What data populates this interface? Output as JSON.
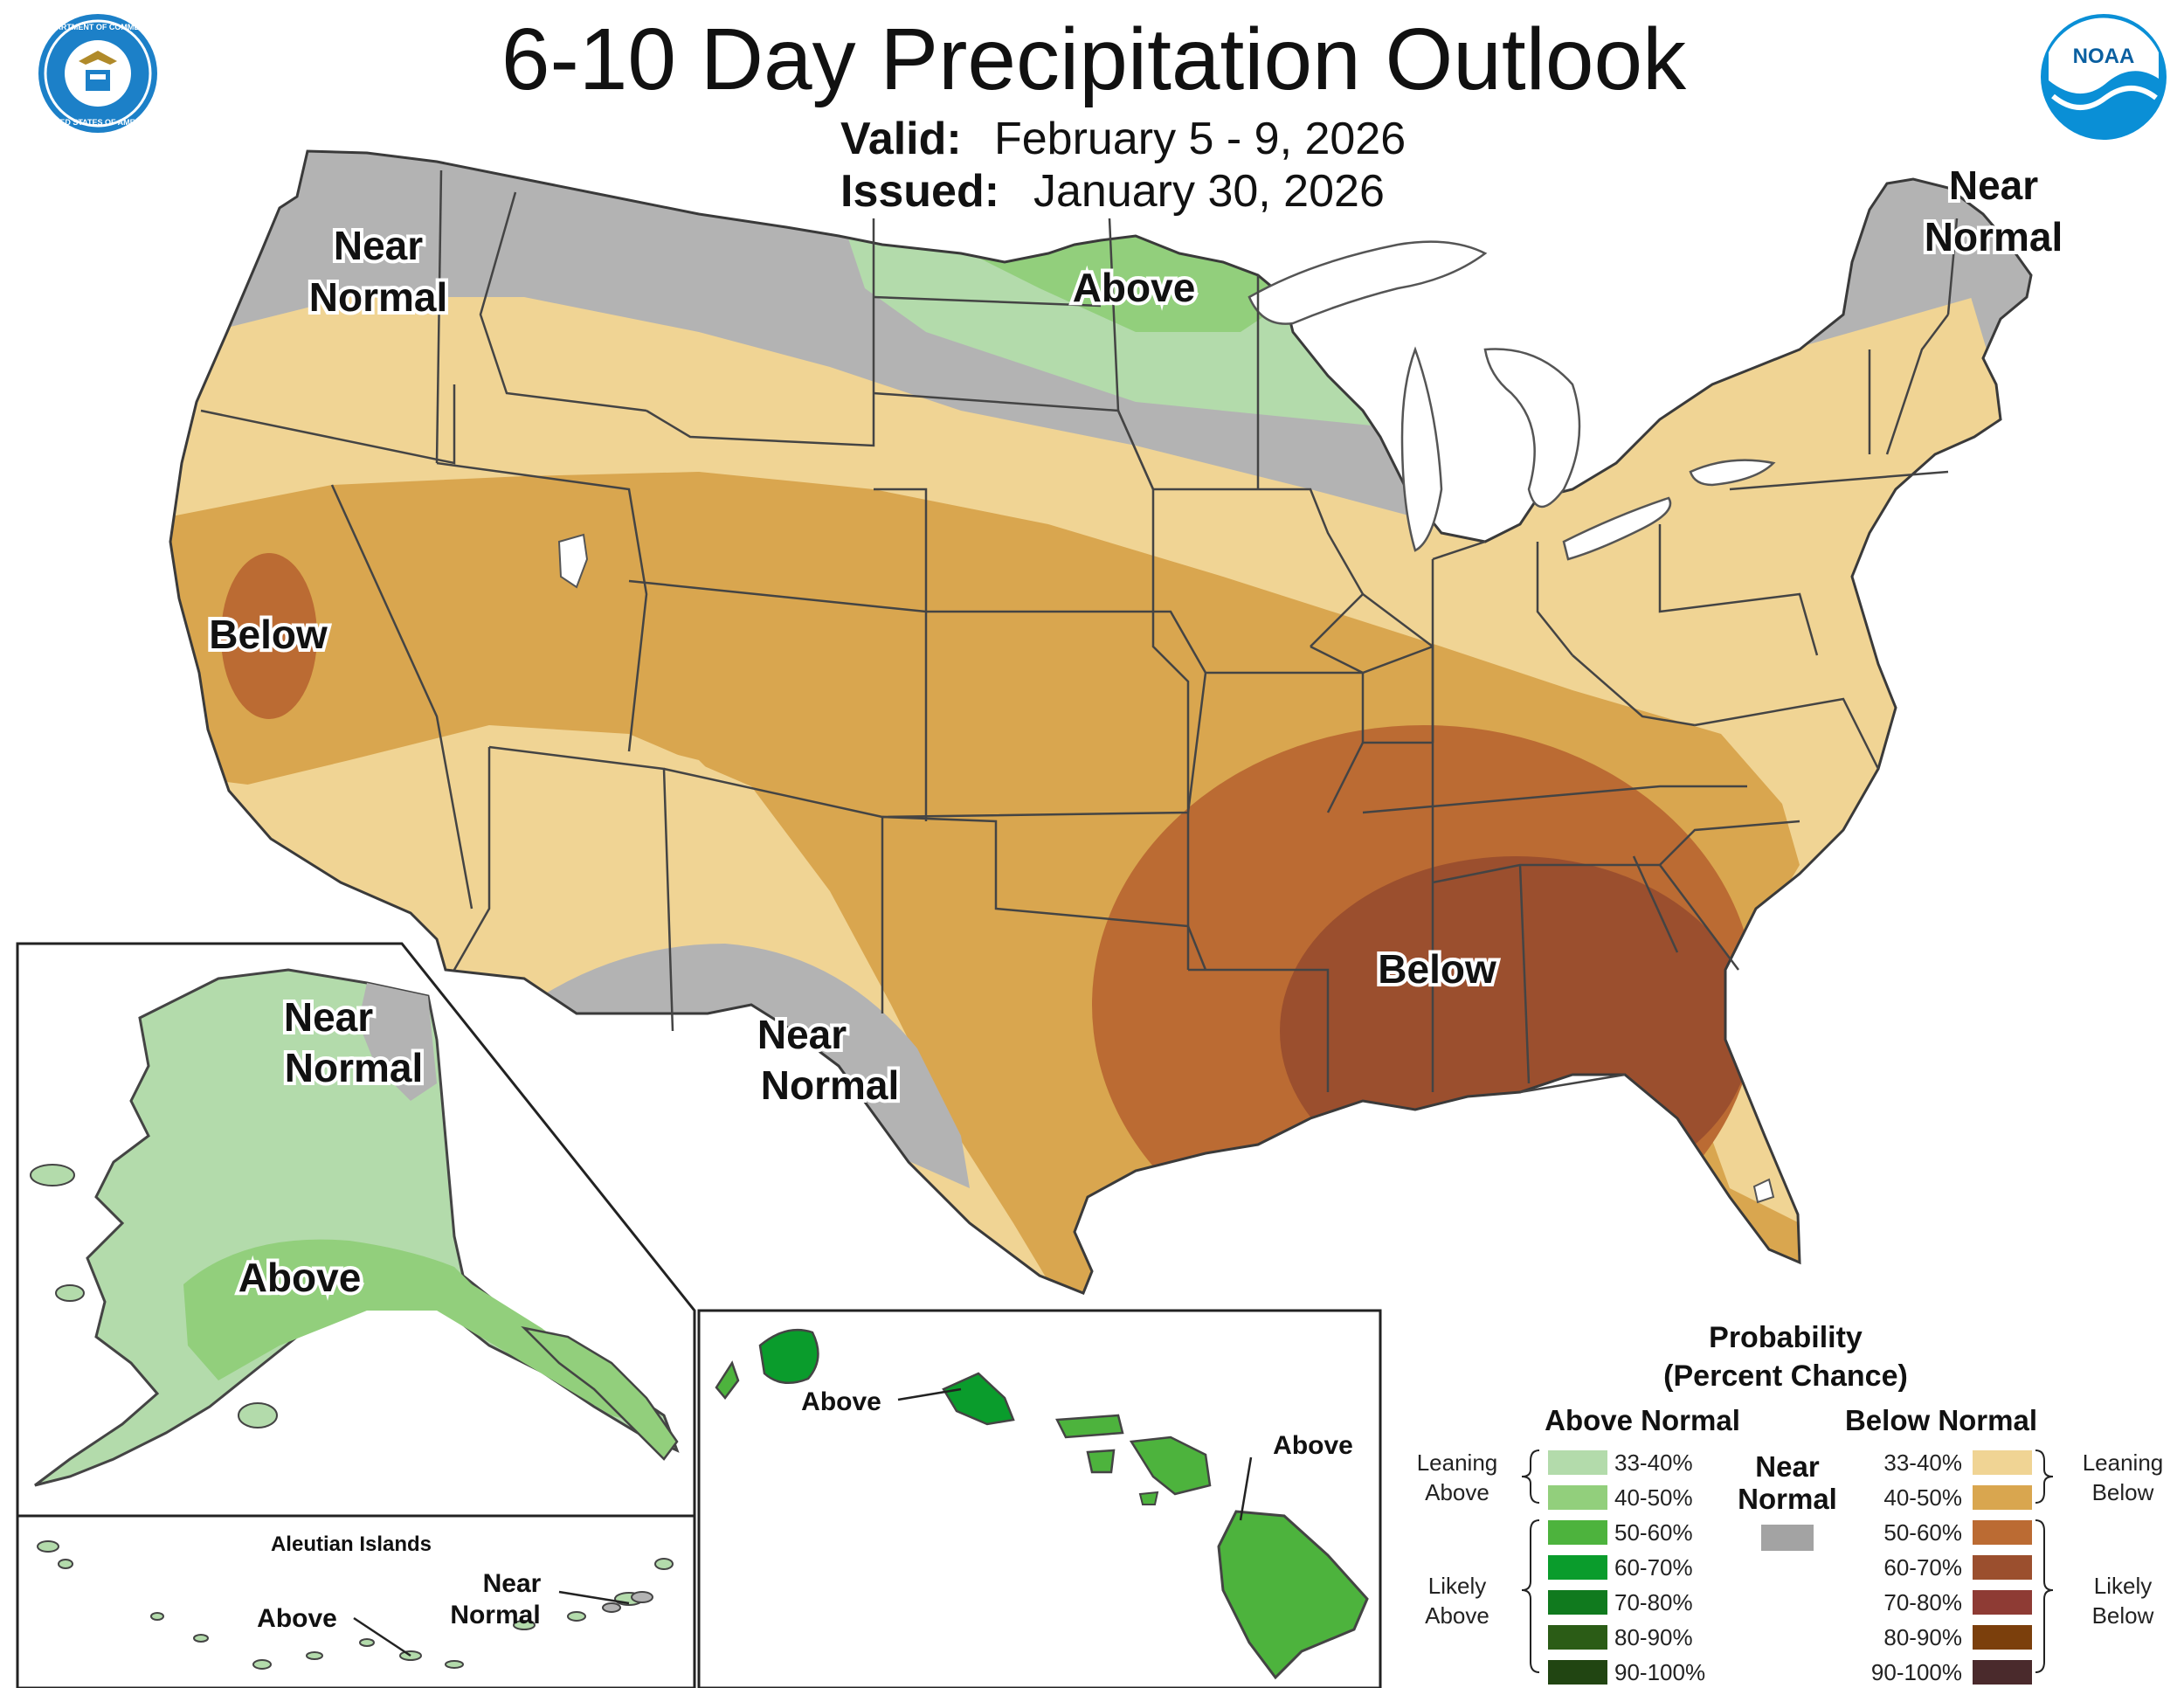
{
  "title": "6-10 Day Precipitation Outlook",
  "valid_label": "Valid:",
  "valid_value": "February 5 - 9, 2026",
  "issued_label": "Issued:",
  "issued_value": "January 30, 2026",
  "logos": {
    "left": "Department of Commerce seal",
    "right": "NOAA logo",
    "noaa_text": "NOAA",
    "doc_seal_top": "DEPARTMENT OF COMMERCE",
    "doc_seal_bottom": "UNITED STATES OF AMERICA"
  },
  "conus_labels": {
    "northwest": [
      "Near",
      "Normal"
    ],
    "north_central": "Above",
    "california": "Below",
    "southeast": "Below",
    "southwest": [
      "Near",
      "Normal"
    ],
    "northeast": [
      "Near",
      "Normal"
    ]
  },
  "alaska_labels": {
    "north": [
      "Near",
      "Normal"
    ],
    "south": "Above"
  },
  "aleutian": {
    "title": "Aleutian Islands",
    "above": "Above",
    "near": [
      "Near",
      "Normal"
    ]
  },
  "hawaii_labels": {
    "west": "Above",
    "east": "Above"
  },
  "legend": {
    "title_line1": "Probability",
    "title_line2": "(Percent Chance)",
    "above_header": "Above Normal",
    "below_header": "Below Normal",
    "near_header": [
      "Near",
      "Normal"
    ],
    "above_items": [
      {
        "label": "33-40%",
        "color": "#b3dbab"
      },
      {
        "label": "40-50%",
        "color": "#92cf7c"
      },
      {
        "label": "50-60%",
        "color": "#4db33d"
      },
      {
        "label": "60-70%",
        "color": "#0a9c2c"
      },
      {
        "label": "70-80%",
        "color": "#107a1e"
      },
      {
        "label": "80-90%",
        "color": "#2b5c16"
      },
      {
        "label": "90-100%",
        "color": "#214512"
      }
    ],
    "below_items": [
      {
        "label": "33-40%",
        "color": "#f0d494"
      },
      {
        "label": "40-50%",
        "color": "#d9a64f"
      },
      {
        "label": "50-60%",
        "color": "#bb6b33"
      },
      {
        "label": "60-70%",
        "color": "#9b4f2e"
      },
      {
        "label": "70-80%",
        "color": "#8e3b34"
      },
      {
        "label": "80-90%",
        "color": "#7b3f0c"
      },
      {
        "label": "90-100%",
        "color": "#4a2a2c"
      }
    ],
    "near_color": "#a3a3a3",
    "leaning_above": [
      "Leaning",
      "Above"
    ],
    "likely_above": [
      "Likely",
      "Above"
    ],
    "leaning_below": [
      "Leaning",
      "Below"
    ],
    "likely_below": [
      "Likely",
      "Below"
    ]
  },
  "colors": {
    "near_normal": "#b3b3b3",
    "above_33_40": "#b3dbab",
    "above_40_50": "#92cf7c",
    "above_50_60": "#4db33d",
    "above_60_70": "#0a9c2c",
    "below_33_40": "#f0d494",
    "below_40_50": "#d9a64f",
    "below_50_60": "#bb6b33",
    "below_60_70": "#9b4f2e",
    "noaa_blue": "#0a8fd6",
    "seal_blue": "#1c80c8"
  }
}
